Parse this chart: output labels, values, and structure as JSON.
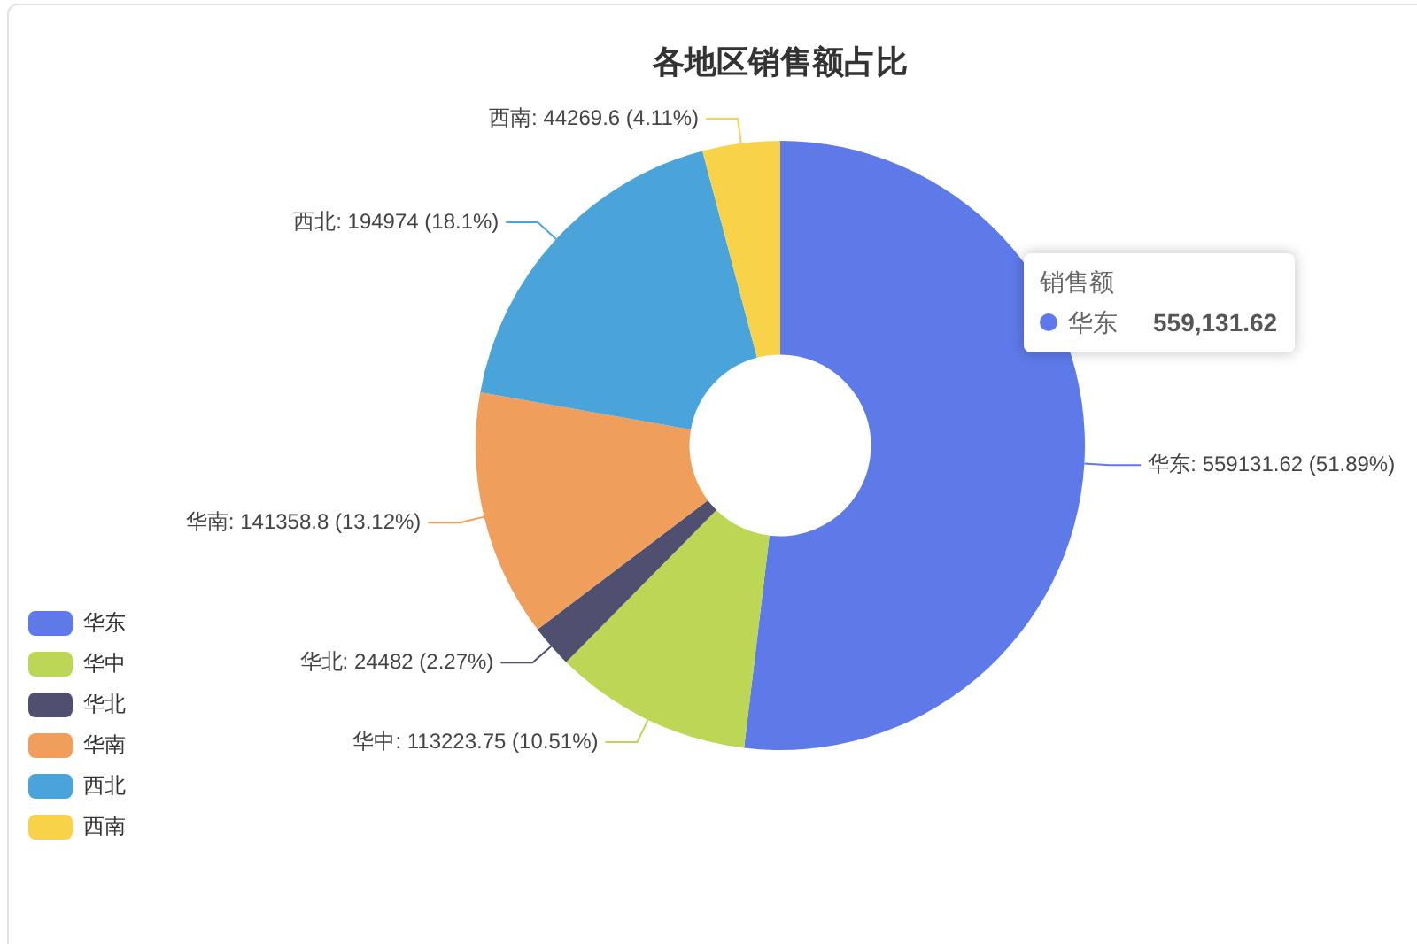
{
  "chart_data": {
    "type": "donut",
    "title": "各地区销售额占比",
    "categories": [
      "华东",
      "华中",
      "华北",
      "华南",
      "西北",
      "西南"
    ],
    "values": [
      559131.62,
      113223.75,
      24482,
      141358.8,
      194974,
      44269.6
    ],
    "colors": [
      "#5e7ae9",
      "#bcd655",
      "#4f5070",
      "#f09e5b",
      "#4aa4da",
      "#f8d248"
    ],
    "value_labels": [
      "华东: 559131.62 (51.89%)",
      "华中: 113223.75 (10.51%)",
      "华北: 24482 (2.27%)",
      "华南: 141358.8 (13.12%)",
      "西北: 194974 (18.1%)",
      "西南: 44269.6 (4.11%)"
    ],
    "legend": "bottom left",
    "annotations": [
      "销售额",
      "华东 559,131.62"
    ]
  }
}
